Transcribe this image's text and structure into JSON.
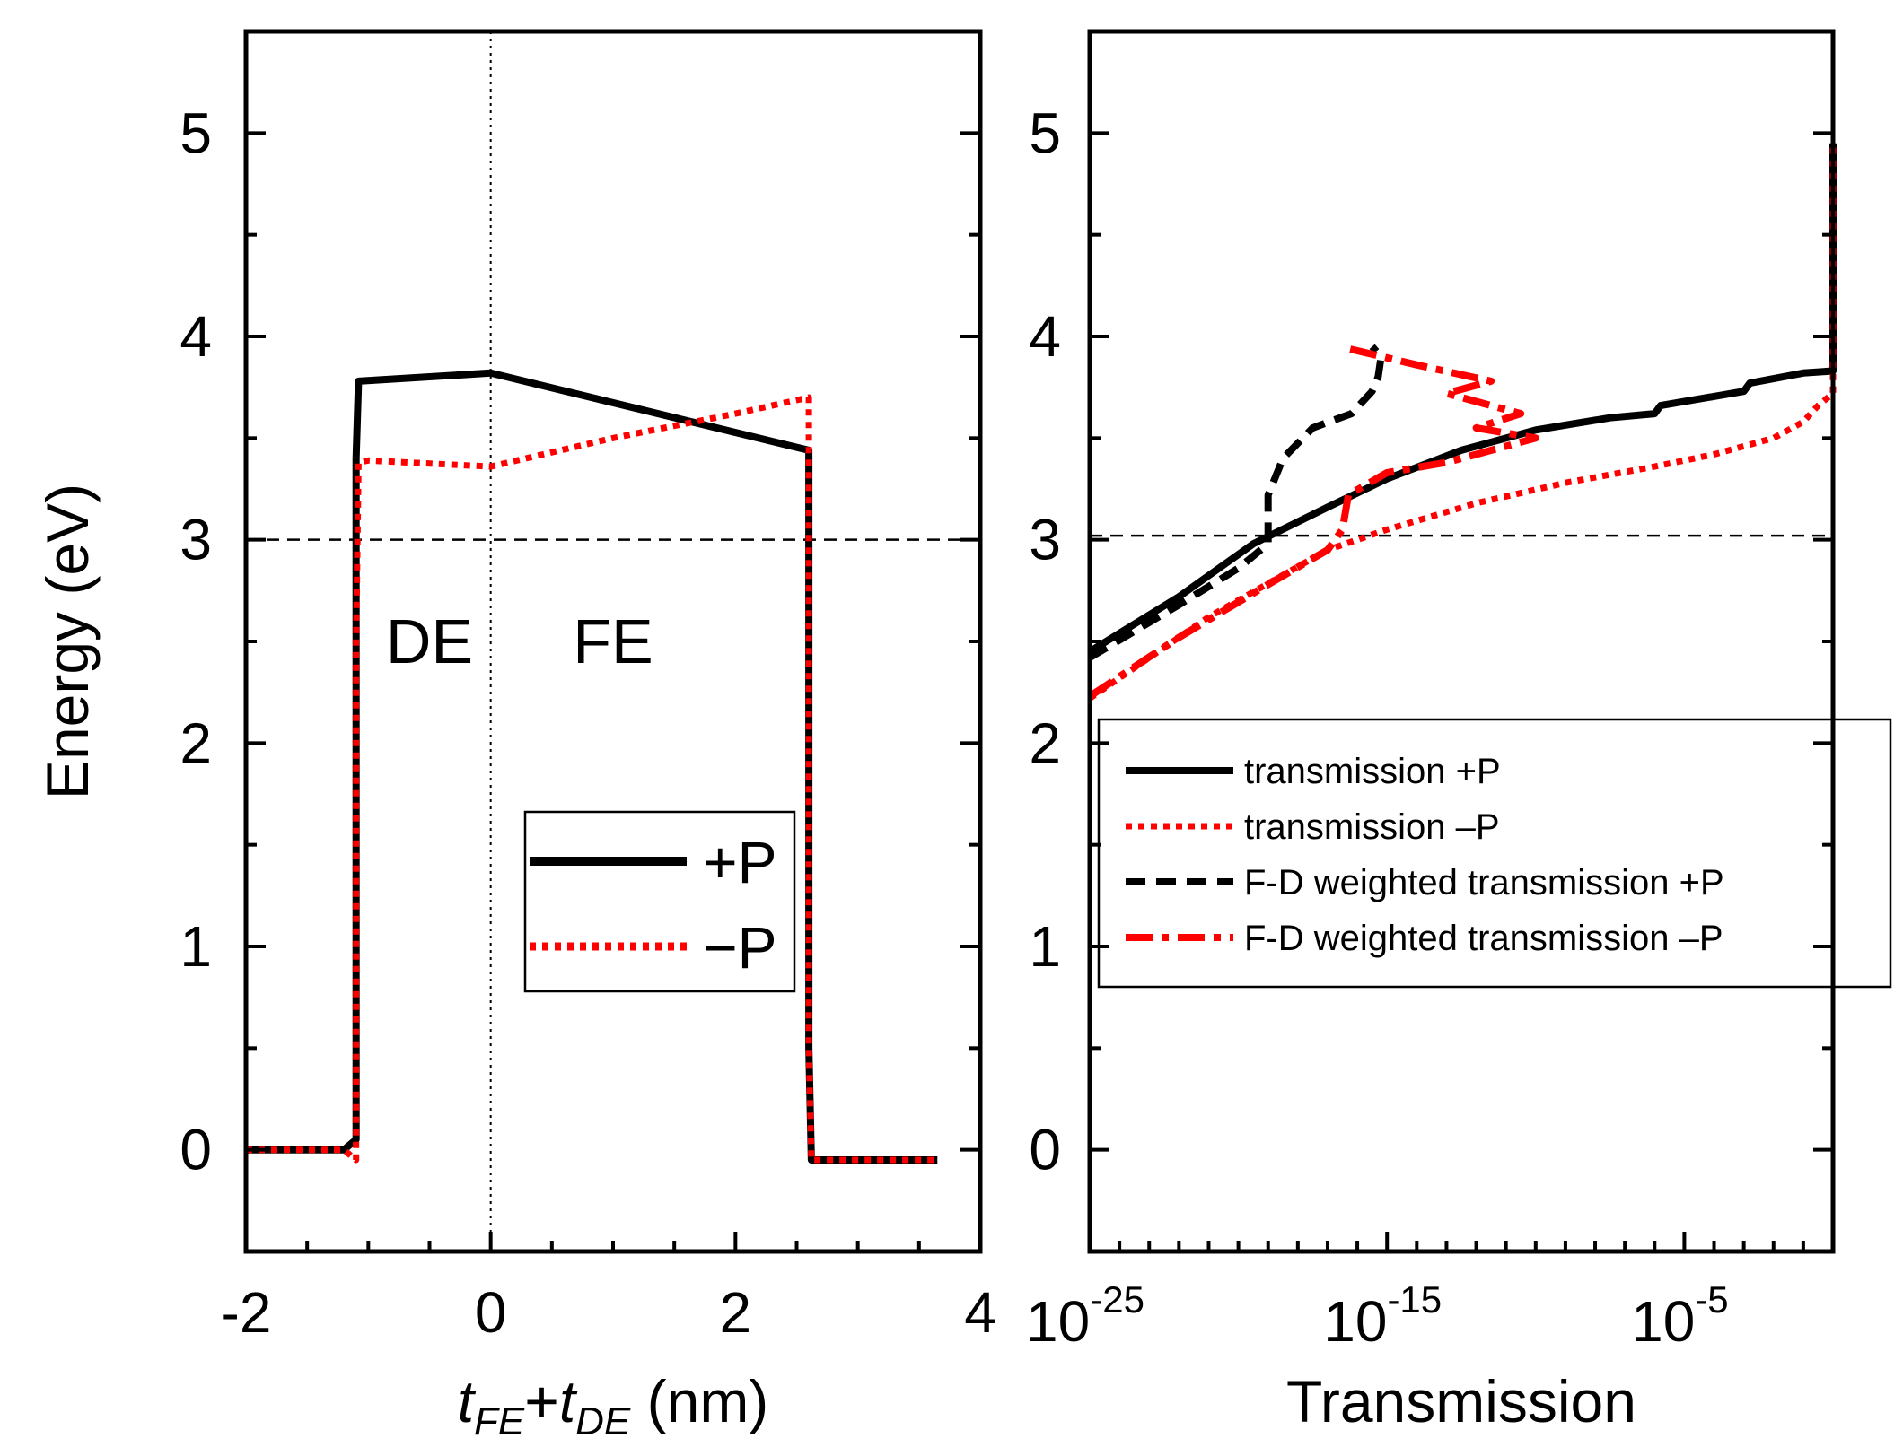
{
  "figure": {
    "background": "#ffffff"
  },
  "chart_data": [
    {
      "type": "line",
      "panel": "left",
      "ylabel": "Energy (eV)",
      "xlabel": {
        "t1": "t",
        "s1": "FE",
        "plus": "+",
        "t2": "t",
        "s2": "DE",
        "unit": " (nm)"
      },
      "xlim": [
        -2,
        4
      ],
      "ylim": [
        -0.5,
        5.5
      ],
      "xticks": [
        -2,
        0,
        2,
        4
      ],
      "xtick_labels": [
        "-2",
        "0",
        "2",
        "4"
      ],
      "yticks": [
        0,
        1,
        2,
        3,
        4,
        5
      ],
      "ytick_labels": [
        "0",
        "1",
        "2",
        "3",
        "4",
        "5"
      ],
      "reference_lines": {
        "horizontal_y": 3.0,
        "vertical_x": 0.0
      },
      "annotations": [
        {
          "text": "DE",
          "x": -0.5,
          "y": 2.5
        },
        {
          "text": "FE",
          "x": 1.0,
          "y": 2.5
        }
      ],
      "legend": {
        "position": "lower-right",
        "entries": [
          "+P",
          "−P"
        ]
      },
      "series": [
        {
          "name": "+P",
          "color": "#000000",
          "style": "solid",
          "x": [
            -2.0,
            -1.2,
            -1.1,
            -1.1,
            -1.08,
            0.0,
            2.6,
            2.6,
            2.62,
            3.65
          ],
          "y": [
            0.0,
            0.0,
            0.05,
            3.4,
            3.78,
            3.82,
            3.44,
            0.5,
            -0.05,
            -0.05
          ]
        },
        {
          "name": "−P",
          "color": "#ff0000",
          "style": "dotted",
          "x": [
            -2.0,
            -1.2,
            -1.1,
            -1.1,
            -1.08,
            -1.0,
            0.0,
            1.0,
            2.0,
            2.6,
            2.6,
            2.62,
            3.65
          ],
          "y": [
            0.0,
            0.0,
            -0.05,
            2.5,
            3.38,
            3.39,
            3.36,
            3.5,
            3.62,
            3.7,
            0.5,
            -0.05,
            -0.05
          ]
        }
      ]
    },
    {
      "type": "line",
      "panel": "right",
      "xscale": "log",
      "xlabel": "Transmission",
      "xlim_exponent": [
        -25,
        0
      ],
      "ylim": [
        -0.5,
        5.5
      ],
      "xticks_exponent": [
        -25,
        -15,
        -5
      ],
      "xtick_labels": [
        {
          "base": "10",
          "exp": "-25"
        },
        {
          "base": "10",
          "exp": "-15"
        },
        {
          "base": "10",
          "exp": "-5"
        }
      ],
      "yticks": [
        0,
        1,
        2,
        3,
        4,
        5
      ],
      "ytick_labels": [
        "0",
        "1",
        "2",
        "3",
        "4",
        "5"
      ],
      "reference_lines": {
        "horizontal_y": 3.02
      },
      "legend": {
        "position": "center-right",
        "entries": [
          "transmission +P",
          "transmission –P",
          "F-D weighted transmission +P",
          "F-D weighted transmission –P"
        ]
      },
      "series": [
        {
          "name": "transmission +P",
          "color": "#000000",
          "style": "solid",
          "log10_x": [
            -25,
            -22,
            -19.5,
            -17,
            -15,
            -12.5,
            -10,
            -7.5,
            -6,
            -5.8,
            -3,
            -2.8,
            -1,
            0,
            0
          ],
          "y": [
            2.45,
            2.72,
            2.98,
            3.16,
            3.3,
            3.44,
            3.54,
            3.6,
            3.62,
            3.66,
            3.73,
            3.77,
            3.82,
            3.83,
            4.95
          ]
        },
        {
          "name": "transmission –P",
          "color": "#ff0000",
          "style": "dotted",
          "log10_x": [
            -25,
            -21,
            -17,
            -15,
            -12,
            -9,
            -6,
            -4,
            -2,
            -1,
            -0.5,
            0,
            0
          ],
          "y": [
            2.22,
            2.62,
            2.95,
            3.05,
            3.18,
            3.28,
            3.36,
            3.42,
            3.5,
            3.58,
            3.66,
            3.72,
            4.95
          ]
        },
        {
          "name": "F-D weighted transmission +P",
          "color": "#000000",
          "style": "dashed",
          "log10_x": [
            -25,
            -22,
            -20,
            -19,
            -19,
            -18.5,
            -17.5,
            -16.2,
            -15.5,
            -15.3,
            -15.2,
            -15.5
          ],
          "y": [
            2.42,
            2.68,
            2.86,
            2.98,
            3.22,
            3.4,
            3.55,
            3.62,
            3.73,
            3.8,
            3.9,
            3.95
          ]
        },
        {
          "name": "F-D weighted transmission –P",
          "color": "#ff0000",
          "style": "dashdot",
          "log10_x": [
            -25,
            -22,
            -19,
            -17,
            -16.5,
            -16.3,
            -15,
            -13,
            -12,
            -10,
            -12,
            -10.5,
            -13,
            -11.5,
            -14,
            -16.3
          ],
          "y": [
            2.23,
            2.52,
            2.78,
            2.95,
            3.05,
            3.22,
            3.33,
            3.38,
            3.42,
            3.5,
            3.55,
            3.62,
            3.72,
            3.78,
            3.86,
            3.94
          ]
        }
      ]
    }
  ]
}
